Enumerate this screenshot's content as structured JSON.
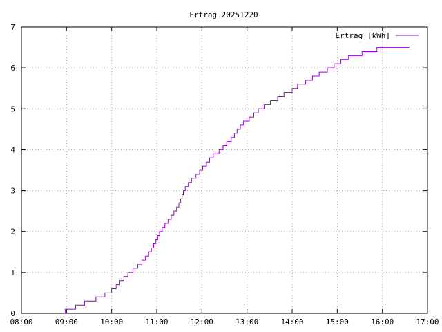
{
  "chart_data": {
    "type": "line",
    "title": "Ertrag 20251220",
    "xlabel": "",
    "ylabel": "",
    "x_unit": "time of day (hours)",
    "xlim": [
      8,
      17
    ],
    "ylim": [
      0,
      7
    ],
    "x_ticks": [
      {
        "value": 8,
        "label": "08:00"
      },
      {
        "value": 9,
        "label": "09:00"
      },
      {
        "value": 10,
        "label": "10:00"
      },
      {
        "value": 11,
        "label": "11:00"
      },
      {
        "value": 12,
        "label": "12:00"
      },
      {
        "value": 13,
        "label": "13:00"
      },
      {
        "value": 14,
        "label": "14:00"
      },
      {
        "value": 15,
        "label": "15:00"
      },
      {
        "value": 16,
        "label": "16:00"
      },
      {
        "value": 17,
        "label": "17:00"
      }
    ],
    "y_ticks": [
      {
        "value": 0,
        "label": "0"
      },
      {
        "value": 1,
        "label": "1"
      },
      {
        "value": 2,
        "label": "2"
      },
      {
        "value": 3,
        "label": "3"
      },
      {
        "value": 4,
        "label": "4"
      },
      {
        "value": 5,
        "label": "5"
      },
      {
        "value": 6,
        "label": "6"
      },
      {
        "value": 7,
        "label": "7"
      }
    ],
    "grid": true,
    "legend_position": "top-right",
    "series": [
      {
        "name": "Ertrag [kWh]",
        "color": "#9400d3",
        "step": true,
        "points": [
          [
            8.95,
            0
          ],
          [
            8.97,
            0.1
          ],
          [
            9.2,
            0.2
          ],
          [
            9.4,
            0.3
          ],
          [
            9.65,
            0.4
          ],
          [
            9.85,
            0.5
          ],
          [
            10.0,
            0.6
          ],
          [
            10.1,
            0.7
          ],
          [
            10.18,
            0.8
          ],
          [
            10.27,
            0.9
          ],
          [
            10.36,
            1.0
          ],
          [
            10.47,
            1.1
          ],
          [
            10.58,
            1.2
          ],
          [
            10.67,
            1.3
          ],
          [
            10.75,
            1.4
          ],
          [
            10.82,
            1.5
          ],
          [
            10.88,
            1.6
          ],
          [
            10.93,
            1.7
          ],
          [
            10.98,
            1.8
          ],
          [
            11.02,
            1.9
          ],
          [
            11.06,
            2.0
          ],
          [
            11.12,
            2.1
          ],
          [
            11.18,
            2.2
          ],
          [
            11.25,
            2.3
          ],
          [
            11.32,
            2.4
          ],
          [
            11.38,
            2.5
          ],
          [
            11.44,
            2.6
          ],
          [
            11.49,
            2.7
          ],
          [
            11.53,
            2.8
          ],
          [
            11.56,
            2.9
          ],
          [
            11.59,
            3.0
          ],
          [
            11.63,
            3.1
          ],
          [
            11.7,
            3.2
          ],
          [
            11.77,
            3.3
          ],
          [
            11.87,
            3.4
          ],
          [
            11.95,
            3.5
          ],
          [
            12.02,
            3.6
          ],
          [
            12.1,
            3.7
          ],
          [
            12.17,
            3.8
          ],
          [
            12.25,
            3.9
          ],
          [
            12.38,
            4.0
          ],
          [
            12.47,
            4.1
          ],
          [
            12.55,
            4.2
          ],
          [
            12.65,
            4.3
          ],
          [
            12.72,
            4.4
          ],
          [
            12.78,
            4.5
          ],
          [
            12.85,
            4.6
          ],
          [
            12.92,
            4.7
          ],
          [
            13.05,
            4.8
          ],
          [
            13.15,
            4.9
          ],
          [
            13.25,
            5.0
          ],
          [
            13.38,
            5.1
          ],
          [
            13.52,
            5.2
          ],
          [
            13.68,
            5.3
          ],
          [
            13.82,
            5.4
          ],
          [
            14.0,
            5.5
          ],
          [
            14.12,
            5.6
          ],
          [
            14.3,
            5.7
          ],
          [
            14.45,
            5.8
          ],
          [
            14.6,
            5.9
          ],
          [
            14.78,
            6.0
          ],
          [
            14.93,
            6.1
          ],
          [
            15.08,
            6.2
          ],
          [
            15.25,
            6.3
          ],
          [
            15.55,
            6.4
          ],
          [
            15.88,
            6.5
          ],
          [
            16.6,
            6.5
          ]
        ]
      }
    ]
  }
}
